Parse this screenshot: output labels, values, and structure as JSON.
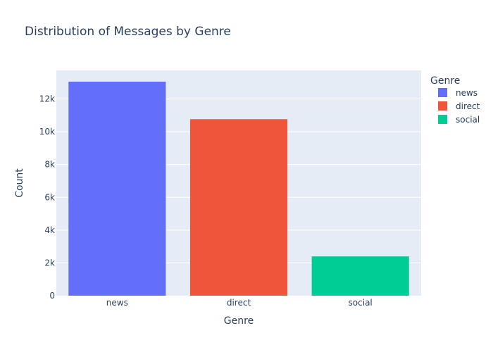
{
  "chart_data": {
    "type": "bar",
    "title": "Distribution of Messages by Genre",
    "xlabel": "Genre",
    "ylabel": "Count",
    "categories": [
      "news",
      "direct",
      "social"
    ],
    "values": [
      13054,
      10766,
      2396
    ],
    "ylim": [
      0,
      13741
    ],
    "yticks": [
      0,
      2000,
      4000,
      6000,
      8000,
      10000,
      12000
    ],
    "ytick_labels": [
      "0",
      "2k",
      "4k",
      "6k",
      "8k",
      "10k",
      "12k"
    ],
    "grid": true,
    "legend": {
      "title": "Genre",
      "placement": "right",
      "entries": [
        "news",
        "direct",
        "social"
      ]
    },
    "colors": [
      "#636efa",
      "#ef553b",
      "#00cc96"
    ],
    "plot_background": "#e5ecf6",
    "gridline_color": "#ffffff"
  }
}
